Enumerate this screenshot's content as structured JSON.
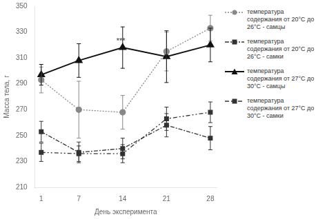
{
  "chart_data": {
    "type": "line",
    "x": [
      1,
      7,
      14,
      21,
      28
    ],
    "series": [
      {
        "name": "температура\nсодержания от 20°С до\n26°С - самцы",
        "color": "#888888",
        "values": [
          293,
          270,
          268,
          315,
          333
        ],
        "yerr": [
          10,
          22,
          13,
          15,
          10
        ],
        "marker": "circle",
        "line_style": "dotted"
      },
      {
        "name": "температура\nсодержания от 20°С до\n26°С - самки",
        "color": "#333333",
        "values": [
          253,
          237,
          240,
          258,
          248
        ],
        "yerr": [
          8,
          8,
          8,
          9,
          9
        ],
        "marker": "square",
        "line_style": "dashdot"
      },
      {
        "name": "температура\nсодержания от 27°С до\n30°С - самцы",
        "color": "#111111",
        "values": [
          297,
          308,
          318,
          311,
          320
        ],
        "yerr": [
          8,
          13,
          16,
          20,
          13
        ],
        "marker": "triangle",
        "line_style": "solid"
      },
      {
        "name": "температура\nсодержания от 27°С до\n30°С - самки",
        "color": "#333333",
        "values": [
          237,
          236,
          236,
          263,
          268
        ],
        "yerr": [
          7,
          6,
          7,
          9,
          8
        ],
        "marker": "square",
        "line_style": "dashed"
      }
    ],
    "annotations": [
      {
        "text": "***",
        "x": 13.7,
        "y": 320
      }
    ],
    "xlabel": "День эксперимента",
    "ylabel": "Масса тела, г",
    "xlim": [
      0,
      29
    ],
    "xticks": [
      1,
      7,
      14,
      21,
      28
    ],
    "ylim": [
      210,
      350
    ],
    "yticks": [
      210,
      230,
      250,
      270,
      290,
      310,
      330,
      350
    ],
    "grid": false,
    "legend": "right"
  }
}
